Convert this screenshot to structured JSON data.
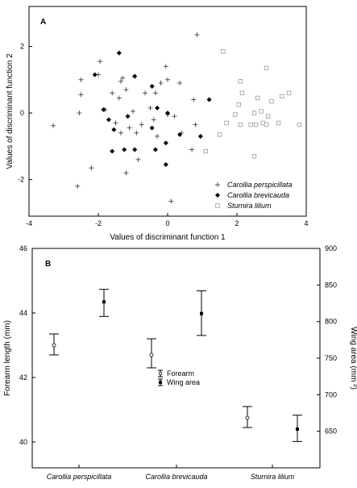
{
  "chart_data": [
    {
      "panel": "A",
      "type": "scatter",
      "xlabel": "Values of discriminant function 1",
      "ylabel": "Values of discriminant function 2",
      "xlim": [
        -4,
        4
      ],
      "ylim": [
        -3.1,
        3.2
      ],
      "x_ticks": [
        -4,
        -2,
        0,
        2,
        4
      ],
      "y_ticks": [
        -2,
        0,
        2
      ],
      "legend_placement": "bottom-right",
      "series": [
        {
          "name": "Carollia perspicillata",
          "marker": "plus",
          "points": [
            [
              -3.3,
              -0.38
            ],
            [
              -2.6,
              -2.2
            ],
            [
              -2.5,
              1.0
            ],
            [
              -2.5,
              0.55
            ],
            [
              -2.55,
              0.0
            ],
            [
              -2.2,
              -1.65
            ],
            [
              -1.95,
              1.55
            ],
            [
              -2.0,
              1.15
            ],
            [
              -1.8,
              0.1
            ],
            [
              -1.6,
              0.6
            ],
            [
              -1.5,
              -0.3
            ],
            [
              -1.4,
              0.45
            ],
            [
              -1.35,
              0.95
            ],
            [
              -1.3,
              1.05
            ],
            [
              -1.35,
              -0.6
            ],
            [
              -1.2,
              0.7
            ],
            [
              -1.2,
              -1.8
            ],
            [
              -1.1,
              -0.45
            ],
            [
              -1.0,
              0.05
            ],
            [
              -0.95,
              1.1
            ],
            [
              -0.9,
              -0.6
            ],
            [
              -0.85,
              -1.4
            ],
            [
              -0.75,
              -0.35
            ],
            [
              -0.65,
              0.6
            ],
            [
              -0.5,
              0.15
            ],
            [
              -0.4,
              -0.2
            ],
            [
              -0.35,
              0.6
            ],
            [
              -0.3,
              -0.7
            ],
            [
              -0.2,
              0.9
            ],
            [
              -0.05,
              1.4
            ],
            [
              0.0,
              1.0
            ],
            [
              0.0,
              -0.05
            ],
            [
              0.1,
              -2.65
            ],
            [
              0.2,
              -0.1
            ],
            [
              0.35,
              0.9
            ],
            [
              0.4,
              -0.6
            ],
            [
              0.75,
              0.4
            ],
            [
              0.85,
              2.35
            ],
            [
              0.8,
              -0.35
            ],
            [
              0.7,
              -1.1
            ]
          ]
        },
        {
          "name": "Carollia brevicauda",
          "marker": "diamond",
          "points": [
            [
              -1.4,
              1.8
            ],
            [
              -2.1,
              1.15
            ],
            [
              -1.85,
              0.1
            ],
            [
              -1.7,
              -0.2
            ],
            [
              -1.55,
              -0.5
            ],
            [
              -1.6,
              -1.15
            ],
            [
              -1.25,
              -1.1
            ],
            [
              -1.15,
              -0.1
            ],
            [
              -0.95,
              1.1
            ],
            [
              -0.95,
              -1.1
            ],
            [
              -0.45,
              -0.45
            ],
            [
              -0.45,
              0.8
            ],
            [
              -0.35,
              -1.1
            ],
            [
              -0.05,
              -0.9
            ],
            [
              -0.05,
              -1.55
            ],
            [
              0.35,
              -0.65
            ],
            [
              0.95,
              -0.7
            ],
            [
              1.2,
              0.4
            ],
            [
              0.0,
              0.0
            ],
            [
              -0.3,
              0.15
            ]
          ]
        },
        {
          "name": "Sturnira lilium",
          "marker": "square",
          "points": [
            [
              1.1,
              -1.15
            ],
            [
              1.5,
              -0.65
            ],
            [
              1.6,
              1.85
            ],
            [
              1.7,
              -0.3
            ],
            [
              1.95,
              -0.05
            ],
            [
              2.05,
              0.25
            ],
            [
              2.15,
              0.6
            ],
            [
              2.1,
              -0.35
            ],
            [
              2.4,
              -0.35
            ],
            [
              2.5,
              0.0
            ],
            [
              2.5,
              -1.3
            ],
            [
              2.6,
              0.45
            ],
            [
              2.7,
              0.05
            ],
            [
              2.75,
              -0.3
            ],
            [
              2.85,
              1.35
            ],
            [
              2.85,
              -0.35
            ],
            [
              2.9,
              -0.1
            ],
            [
              3.0,
              0.35
            ],
            [
              3.2,
              -0.3
            ],
            [
              3.3,
              0.5
            ],
            [
              3.5,
              0.6
            ],
            [
              3.8,
              -0.35
            ],
            [
              2.1,
              0.95
            ],
            [
              2.55,
              -0.35
            ]
          ]
        }
      ]
    },
    {
      "panel": "B",
      "type": "errorbar",
      "categories": [
        "Carollia perspicillata",
        "Carollia brevicauda",
        "Sturnira lilium"
      ],
      "left_axis": {
        "label": "Forearm length (mm)",
        "lim": [
          39.2,
          46
        ],
        "ticks": [
          40,
          42,
          44,
          46
        ]
      },
      "right_axis": {
        "label": "Wing area (mm ²)",
        "lim": [
          600,
          900
        ],
        "ticks": [
          650,
          700,
          750,
          800,
          850,
          900
        ]
      },
      "legend_placement": "center",
      "series": [
        {
          "name": "Forearm",
          "axis": "left",
          "marker": "open-circle",
          "values": [
            {
              "mean": 43.0,
              "low": 42.7,
              "high": 43.35
            },
            {
              "mean": 42.7,
              "low": 42.3,
              "high": 43.2
            },
            {
              "mean": 40.75,
              "low": 40.45,
              "high": 41.1
            }
          ]
        },
        {
          "name": "Wing area",
          "axis": "right",
          "marker": "filled-square",
          "values": [
            {
              "mean": 827,
              "low": 807,
              "high": 844
            },
            {
              "mean": 811,
              "low": 781,
              "high": 842
            },
            {
              "mean": 653,
              "low": 636,
              "high": 672
            }
          ]
        }
      ]
    }
  ]
}
